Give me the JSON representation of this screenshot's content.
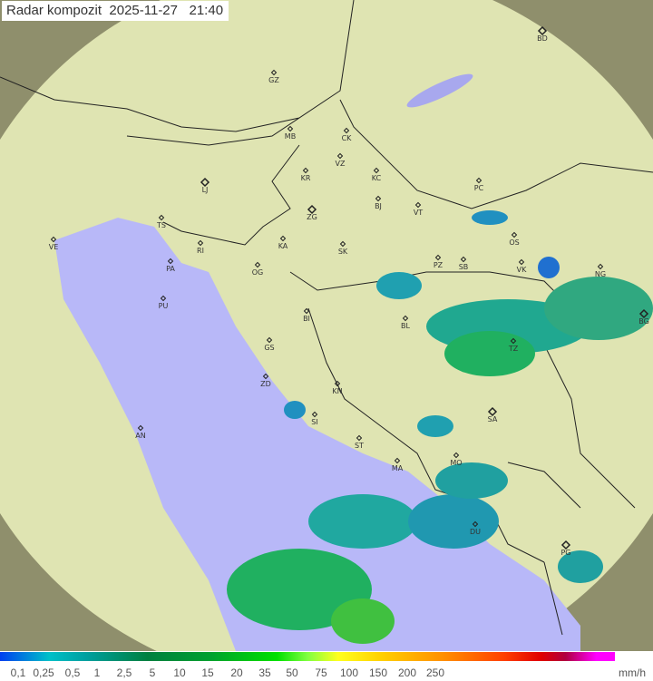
{
  "title": "Radar kompozit  2025-11-27   21:40",
  "legend": {
    "labels": [
      "0,1",
      "0,25",
      "0,5",
      "1",
      "2,5",
      "5",
      "10",
      "15",
      "20",
      "35",
      "50",
      "75",
      "100",
      "150",
      "200",
      "250"
    ],
    "unit": "mm/h"
  },
  "cities": [
    "BD",
    "GZ",
    "MB",
    "CK",
    "VZ",
    "KR",
    "KC",
    "PC",
    "LJ",
    "BJ",
    "VT",
    "ZG",
    "TS",
    "VE",
    "OS",
    "KA",
    "SK",
    "RI",
    "PA",
    "PZ",
    "SB",
    "VK",
    "OG",
    "NG",
    "PU",
    "BG",
    "BI",
    "BL",
    "TZ",
    "GS",
    "ZD",
    "KN",
    "SA",
    "SI",
    "AN",
    "ST",
    "MO",
    "MA",
    "DU",
    "PG"
  ],
  "colors": {
    "sea": "#b8b8f8",
    "land": "#dfe6b0",
    "outside": "#8a8a70",
    "rain_light": "#20a0b0",
    "rain_mid": "#00a040",
    "rain_heavy": "#40c040"
  }
}
